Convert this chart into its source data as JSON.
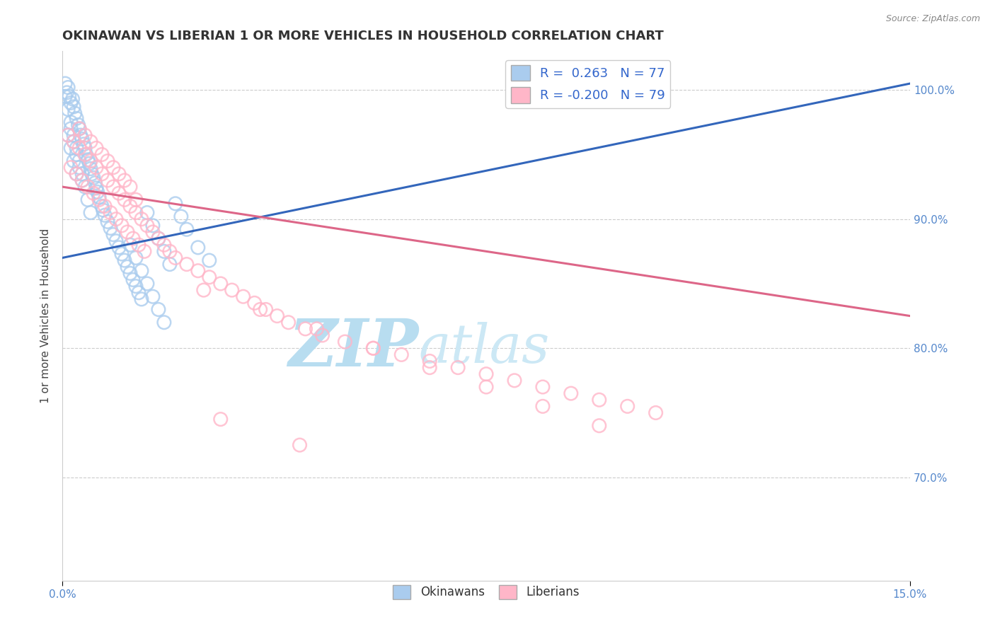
{
  "title": "OKINAWAN VS LIBERIAN 1 OR MORE VEHICLES IN HOUSEHOLD CORRELATION CHART",
  "source": "Source: ZipAtlas.com",
  "ylabel": "1 or more Vehicles in Household",
  "xlabel_okinawan": "Okinawans",
  "xlabel_liberian": "Liberians",
  "xlim": [
    0.0,
    15.0
  ],
  "ylim": [
    62.0,
    103.0
  ],
  "yticks": [
    70.0,
    80.0,
    90.0,
    100.0
  ],
  "xticks": [
    0.0,
    15.0
  ],
  "r_okinawan": 0.263,
  "n_okinawan": 77,
  "r_liberian": -0.2,
  "n_liberian": 79,
  "okinawan_color": "#aaccee",
  "liberian_color": "#ffb6c8",
  "trend_okinawan_color": "#3366bb",
  "trend_liberian_color": "#dd6688",
  "background_color": "#ffffff",
  "watermark_color": "#cce8f5",
  "ok_trend_x0": 0.0,
  "ok_trend_y0": 87.0,
  "ok_trend_x1": 15.0,
  "ok_trend_y1": 100.5,
  "lib_trend_x0": 0.0,
  "lib_trend_y0": 92.5,
  "lib_trend_x1": 15.0,
  "lib_trend_y1": 82.5,
  "ok_x": [
    0.05,
    0.08,
    0.1,
    0.12,
    0.15,
    0.18,
    0.2,
    0.22,
    0.25,
    0.28,
    0.3,
    0.32,
    0.35,
    0.38,
    0.4,
    0.42,
    0.45,
    0.48,
    0.5,
    0.52,
    0.55,
    0.58,
    0.6,
    0.62,
    0.65,
    0.7,
    0.72,
    0.75,
    0.8,
    0.85,
    0.9,
    0.95,
    1.0,
    1.05,
    1.1,
    1.15,
    1.2,
    1.25,
    1.3,
    1.35,
    1.4,
    1.5,
    1.6,
    1.7,
    1.8,
    1.9,
    2.0,
    2.1,
    2.2,
    2.4,
    2.6,
    0.05,
    0.1,
    0.15,
    0.2,
    0.25,
    0.3,
    0.35,
    0.4,
    0.45,
    0.5,
    0.15,
    0.2,
    0.25,
    0.3,
    0.35,
    0.1,
    0.15,
    0.2,
    0.25,
    1.2,
    1.3,
    1.4,
    1.5,
    1.6,
    1.7,
    1.8
  ],
  "ok_y": [
    100.5,
    99.8,
    100.2,
    99.5,
    99.0,
    99.3,
    98.7,
    98.2,
    97.8,
    97.3,
    97.0,
    96.5,
    96.2,
    95.8,
    95.5,
    95.0,
    94.6,
    94.3,
    93.9,
    93.5,
    93.2,
    92.8,
    92.4,
    92.1,
    91.7,
    91.0,
    90.7,
    90.3,
    89.8,
    89.3,
    88.8,
    88.3,
    87.8,
    87.3,
    86.8,
    86.3,
    85.8,
    85.3,
    84.8,
    84.3,
    83.8,
    90.5,
    89.5,
    88.5,
    87.5,
    86.5,
    91.2,
    90.2,
    89.2,
    87.8,
    86.8,
    99.5,
    98.5,
    97.5,
    96.5,
    95.5,
    94.5,
    93.5,
    92.5,
    91.5,
    90.5,
    97.0,
    96.0,
    95.0,
    94.0,
    93.0,
    96.5,
    95.5,
    94.5,
    93.5,
    88.0,
    87.0,
    86.0,
    85.0,
    84.0,
    83.0,
    82.0
  ],
  "lib_x": [
    0.1,
    0.2,
    0.3,
    0.4,
    0.5,
    0.6,
    0.7,
    0.8,
    0.9,
    1.0,
    1.1,
    1.2,
    1.3,
    1.4,
    1.5,
    1.6,
    1.7,
    1.8,
    1.9,
    2.0,
    2.2,
    2.4,
    2.6,
    2.8,
    3.0,
    3.2,
    3.4,
    3.6,
    3.8,
    4.0,
    4.3,
    4.6,
    5.0,
    5.5,
    6.0,
    6.5,
    7.0,
    7.5,
    8.0,
    8.5,
    9.0,
    9.5,
    10.0,
    10.5,
    0.15,
    0.25,
    0.35,
    0.45,
    0.55,
    0.65,
    0.75,
    0.85,
    0.95,
    1.05,
    1.15,
    1.25,
    1.35,
    1.45,
    0.3,
    0.4,
    0.5,
    0.6,
    0.7,
    0.8,
    0.9,
    1.0,
    1.1,
    1.2,
    1.3,
    2.5,
    3.5,
    4.5,
    5.5,
    6.5,
    7.5,
    8.5,
    9.5,
    2.8,
    4.2
  ],
  "lib_y": [
    96.5,
    96.0,
    95.5,
    95.0,
    94.5,
    94.0,
    93.5,
    93.0,
    92.5,
    92.0,
    91.5,
    91.0,
    90.5,
    90.0,
    89.5,
    89.0,
    88.5,
    88.0,
    87.5,
    87.0,
    86.5,
    86.0,
    85.5,
    85.0,
    84.5,
    84.0,
    83.5,
    83.0,
    82.5,
    82.0,
    81.5,
    81.0,
    80.5,
    80.0,
    79.5,
    79.0,
    78.5,
    78.0,
    77.5,
    77.0,
    76.5,
    76.0,
    75.5,
    75.0,
    94.0,
    93.5,
    93.0,
    92.5,
    92.0,
    91.5,
    91.0,
    90.5,
    90.0,
    89.5,
    89.0,
    88.5,
    88.0,
    87.5,
    97.0,
    96.5,
    96.0,
    95.5,
    95.0,
    94.5,
    94.0,
    93.5,
    93.0,
    92.5,
    91.5,
    84.5,
    83.0,
    81.5,
    80.0,
    78.5,
    77.0,
    75.5,
    74.0,
    74.5,
    72.5
  ]
}
